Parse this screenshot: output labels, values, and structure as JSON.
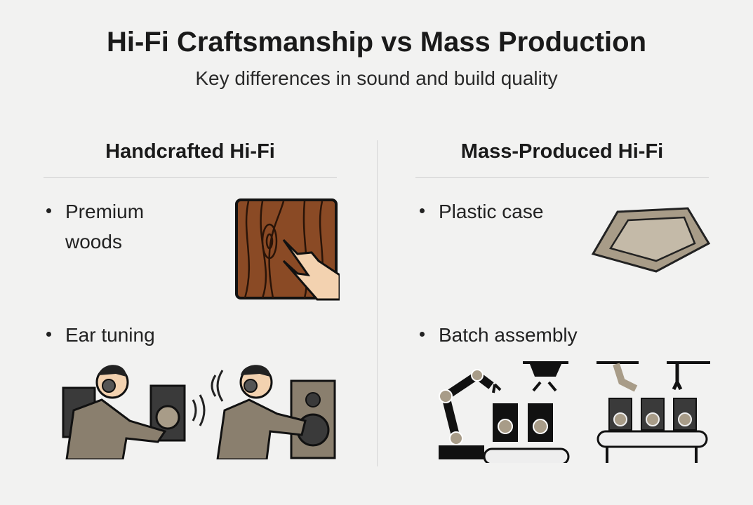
{
  "title": "Hi-Fi Craftsmanship vs Mass Production",
  "subtitle": "Key differences in sound and build quality",
  "left": {
    "heading": "Handcrafted Hi-Fi",
    "items": [
      {
        "label": "Premium woods",
        "icon": "wood-grain-hand-icon"
      },
      {
        "label": "Ear tuning",
        "icon": "headphone-technician-icon"
      }
    ]
  },
  "right": {
    "heading": "Mass-Produced Hi-Fi",
    "items": [
      {
        "label": "Plastic case",
        "icon": "plastic-tray-icon"
      },
      {
        "label": "Batch assembly",
        "icon": "robotic-assembly-line-icon"
      }
    ]
  },
  "colors": {
    "wood": "#8a4a25",
    "plastic": "#a89c88",
    "speaker": "#3a3a3a",
    "skin": "#f3d2b0"
  }
}
